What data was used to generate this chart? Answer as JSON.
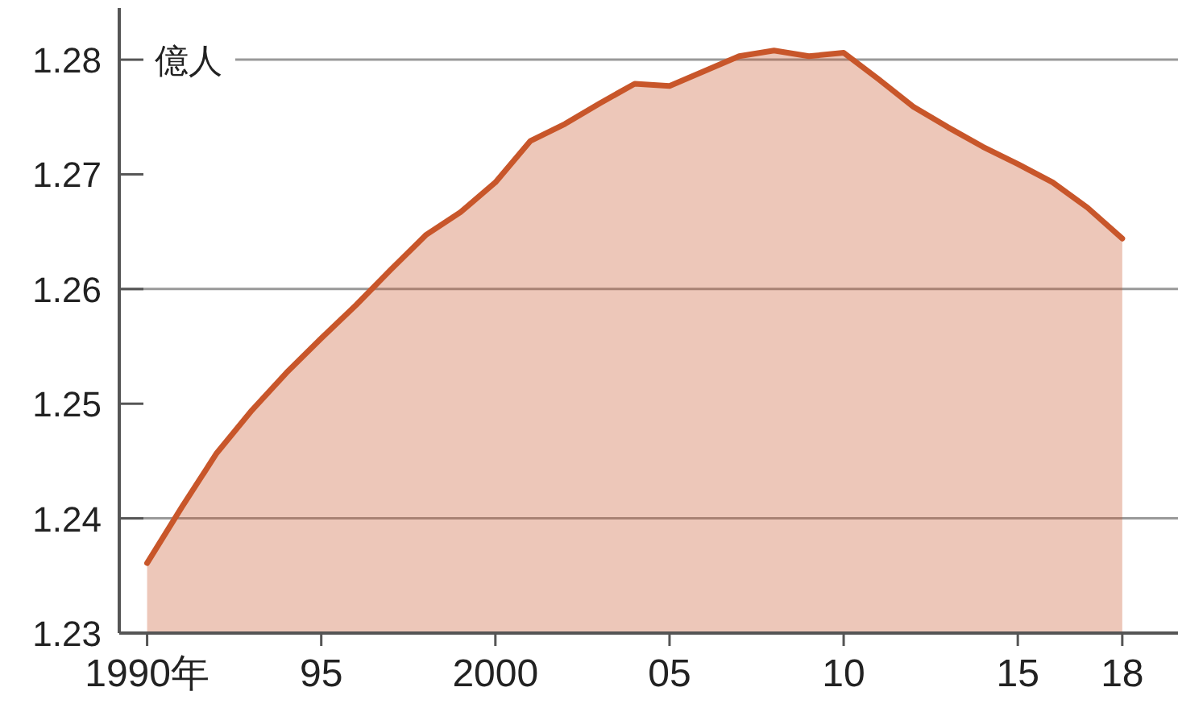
{
  "chart_data": {
    "type": "area",
    "ylabel": "億人",
    "x": [
      1990,
      1991,
      1992,
      1993,
      1994,
      1995,
      1996,
      1997,
      1998,
      1999,
      2000,
      2001,
      2002,
      2003,
      2004,
      2005,
      2006,
      2007,
      2008,
      2009,
      2010,
      2011,
      2012,
      2013,
      2014,
      2015,
      2016,
      2017,
      2018
    ],
    "series": [
      {
        "color": "#c8562a",
        "values": [
          1.2361,
          1.241,
          1.2457,
          1.2494,
          1.2527,
          1.2557,
          1.2586,
          1.2617,
          1.2647,
          1.2667,
          1.2693,
          1.2729,
          1.2744,
          1.2762,
          1.2779,
          1.2777,
          1.279,
          1.2803,
          1.2808,
          1.2803,
          1.2806,
          1.2783,
          1.2759,
          1.2741,
          1.2724,
          1.2709,
          1.2693,
          1.2671,
          1.2644
        ]
      }
    ],
    "xlim": [
      1989.2,
      2019.6
    ],
    "ylim": [
      1.23,
      1.2845
    ],
    "xticks": [
      {
        "value": 1990,
        "label": "1990年"
      },
      {
        "value": 1995,
        "label": "95"
      },
      {
        "value": 2000,
        "label": "2000"
      },
      {
        "value": 2005,
        "label": "05"
      },
      {
        "value": 2010,
        "label": "10"
      },
      {
        "value": 2015,
        "label": "15"
      },
      {
        "value": 2018,
        "label": "18"
      }
    ],
    "yticks": [
      1.23,
      1.24,
      1.25,
      1.26,
      1.27,
      1.28
    ],
    "ref_lines": [
      {
        "axis": "y",
        "value": 1.28,
        "color": "#999999"
      },
      {
        "axis": "y",
        "value": 1.26,
        "color": "#999999"
      },
      {
        "axis": "y",
        "value": 1.24,
        "color": "#999999"
      }
    ],
    "marker": "none",
    "line_style": "solid"
  }
}
